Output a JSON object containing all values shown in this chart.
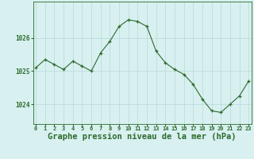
{
  "hours": [
    0,
    1,
    2,
    3,
    4,
    5,
    6,
    7,
    8,
    9,
    10,
    11,
    12,
    13,
    14,
    15,
    16,
    17,
    18,
    19,
    20,
    21,
    22,
    23
  ],
  "pressure": [
    1025.1,
    1025.35,
    1025.2,
    1025.05,
    1025.3,
    1025.15,
    1025.0,
    1025.55,
    1025.9,
    1026.35,
    1026.55,
    1026.5,
    1026.35,
    1025.6,
    1025.25,
    1025.05,
    1024.9,
    1024.6,
    1024.15,
    1023.8,
    1023.75,
    1024.0,
    1024.25,
    1024.7
  ],
  "line_color": "#2d6a2d",
  "marker_color": "#2d6a2d",
  "bg_color": "#d8f0f0",
  "grid_color": "#b8d8d8",
  "xlabel": "Graphe pression niveau de la mer (hPa)",
  "xlabel_color": "#2d6a2d",
  "tick_color": "#2d6a2d",
  "axis_color": "#2d6a2d",
  "ylim": [
    1023.4,
    1027.1
  ],
  "yticks": [
    1024,
    1025,
    1026
  ],
  "xlabel_fontsize": 7.5
}
